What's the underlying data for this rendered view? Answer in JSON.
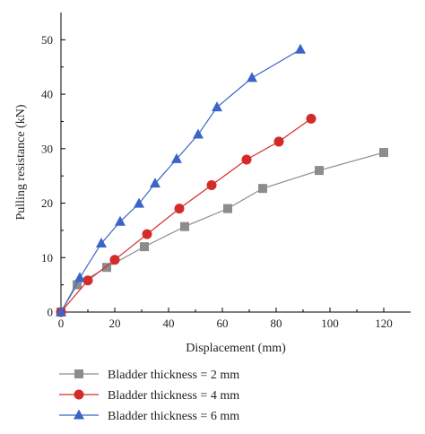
{
  "chart_data": {
    "type": "line",
    "title": "",
    "xlabel": "Displacement (mm)",
    "ylabel": "Pulling resistance (kN)",
    "xlim": [
      0,
      130
    ],
    "ylim": [
      0,
      55
    ],
    "xticks": [
      0,
      20,
      40,
      60,
      80,
      100,
      120
    ],
    "yticks": [
      0,
      10,
      20,
      30,
      40,
      50
    ],
    "grid": false,
    "legend_position": "bottom",
    "series": [
      {
        "name": "Bladder thickness = 2 mm",
        "marker": "square",
        "color": "#8c8c8c",
        "x": [
          0,
          6,
          17,
          31,
          46,
          62,
          75,
          96,
          120
        ],
        "y": [
          0,
          5.0,
          8.2,
          12.0,
          15.7,
          19.0,
          22.7,
          26.0,
          29.3
        ]
      },
      {
        "name": "Bladder thickness = 4 mm",
        "marker": "circle",
        "color": "#d42a2a",
        "x": [
          0,
          10,
          20,
          32,
          44,
          56,
          69,
          81,
          93
        ],
        "y": [
          0,
          5.8,
          9.6,
          14.3,
          19.0,
          23.3,
          28.0,
          31.3,
          35.5
        ]
      },
      {
        "name": "Bladder thickness = 6 mm",
        "marker": "triangle",
        "color": "#3a64c8",
        "x": [
          0,
          7,
          15,
          22,
          29,
          35,
          43,
          51,
          58,
          71,
          89
        ],
        "y": [
          0,
          6.3,
          12.6,
          16.6,
          19.9,
          23.6,
          28.1,
          32.6,
          37.6,
          43.0,
          48.2
        ]
      }
    ]
  }
}
